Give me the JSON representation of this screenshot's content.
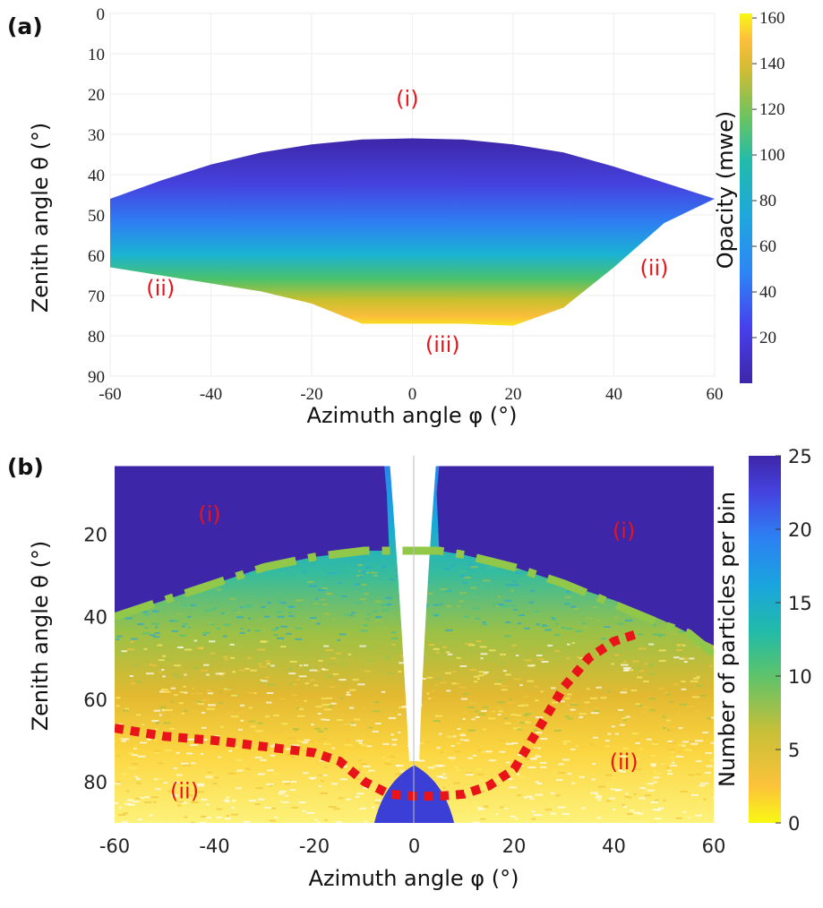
{
  "chart_data": [
    {
      "panel": "(a)",
      "type": "heatmap",
      "xlabel": "Azimuth angle φ (°)",
      "ylabel": "Zenith angle θ (°)",
      "xlim": [
        -60,
        60
      ],
      "ylim": [
        90,
        0
      ],
      "xticks": [
        -60,
        -40,
        -20,
        0,
        20,
        40,
        60
      ],
      "yticks": [
        0,
        10,
        20,
        30,
        40,
        50,
        60,
        70,
        80,
        90
      ],
      "grid": true,
      "colorbar": {
        "label": "Opacity (mwe)",
        "range": [
          0,
          162
        ],
        "ticks": [
          20,
          40,
          60,
          80,
          100,
          120,
          140,
          160
        ],
        "colormap": "parula",
        "position": "right"
      },
      "upper_boundary": [
        [
          -60,
          46
        ],
        [
          -50,
          41.5
        ],
        [
          -40,
          37.5
        ],
        [
          -30,
          34.5
        ],
        [
          -20,
          32.5
        ],
        [
          -10,
          31.3
        ],
        [
          0,
          31
        ],
        [
          10,
          31.3
        ],
        [
          20,
          32.5
        ],
        [
          30,
          34.5
        ],
        [
          40,
          38
        ],
        [
          50,
          42
        ],
        [
          60,
          46
        ]
      ],
      "lower_boundary": [
        [
          -60,
          63
        ],
        [
          -50,
          65
        ],
        [
          -40,
          67
        ],
        [
          -30,
          69
        ],
        [
          -20,
          72
        ],
        [
          -10,
          77
        ],
        [
          0,
          77
        ],
        [
          10,
          77
        ],
        [
          20,
          77.5
        ],
        [
          30,
          73
        ],
        [
          40,
          63
        ],
        [
          50,
          52
        ],
        [
          60,
          46
        ]
      ],
      "region_labels": [
        {
          "text": "(i)",
          "x": -1,
          "y": 23
        },
        {
          "text": "(ii)",
          "x": -50,
          "y": 70
        },
        {
          "text": "(ii)",
          "x": 48,
          "y": 65
        },
        {
          "text": "(iii)",
          "x": 6,
          "y": 84
        }
      ]
    },
    {
      "panel": "(b)",
      "type": "heatmap",
      "xlabel": "Azimuth angle φ (°)",
      "ylabel": "Zenith angle θ (°)",
      "xlim": [
        -60,
        60
      ],
      "ylim": [
        90,
        1
      ],
      "xticks": [
        -60,
        -40,
        -20,
        0,
        20,
        40,
        60
      ],
      "yticks": [
        20,
        40,
        60,
        80
      ],
      "grid": false,
      "colorbar": {
        "label": "Number of particles per bin",
        "range": [
          0,
          25
        ],
        "ticks": [
          0,
          5,
          10,
          15,
          20,
          25
        ],
        "colormap": "parula (reversed)",
        "position": "right"
      },
      "saturation_boundary": [
        [
          -60,
          40
        ],
        [
          -50,
          36
        ],
        [
          -40,
          32
        ],
        [
          -30,
          28
        ],
        [
          -20,
          25.5
        ],
        [
          -10,
          24
        ],
        [
          -5,
          24
        ],
        [
          5,
          24
        ],
        [
          10,
          25
        ],
        [
          20,
          28
        ],
        [
          30,
          32
        ],
        [
          40,
          36
        ],
        [
          50,
          41
        ],
        [
          60,
          47
        ]
      ],
      "dashdot_line": {
        "color": "#92c84a",
        "points": [
          [
            -60,
            40
          ],
          [
            -50,
            36
          ],
          [
            -40,
            32
          ],
          [
            -30,
            28
          ],
          [
            -20,
            25.5
          ],
          [
            -10,
            24
          ],
          [
            -5,
            24
          ],
          [
            5,
            24
          ],
          [
            10,
            25
          ],
          [
            20,
            28
          ],
          [
            30,
            32
          ],
          [
            40,
            37
          ],
          [
            50,
            42
          ],
          [
            55,
            44
          ],
          [
            60,
            49
          ]
        ]
      },
      "dotted_line": {
        "color": "#e8141a",
        "points": [
          [
            -60,
            67
          ],
          [
            -50,
            69
          ],
          [
            -40,
            70
          ],
          [
            -30,
            71.5
          ],
          [
            -20,
            73
          ],
          [
            -15,
            75
          ],
          [
            -10,
            80
          ],
          [
            -5,
            83
          ],
          [
            0,
            83.5
          ],
          [
            5,
            83.5
          ],
          [
            10,
            83
          ],
          [
            15,
            81
          ],
          [
            20,
            77
          ],
          [
            25,
            67
          ],
          [
            30,
            57
          ],
          [
            35,
            50
          ],
          [
            40,
            46
          ],
          [
            45,
            44
          ]
        ]
      },
      "region_labels": [
        {
          "text": "(i)",
          "x": -41,
          "y": 17
        },
        {
          "text": "(i)",
          "x": 42,
          "y": 21
        },
        {
          "text": "(ii)",
          "x": -46,
          "y": 84
        },
        {
          "text": "(ii)",
          "x": 42,
          "y": 77
        }
      ]
    }
  ],
  "colors": {
    "annotation_text": "#e8141a",
    "dashdot": "#92c84a",
    "dotted": "#e8141a"
  }
}
